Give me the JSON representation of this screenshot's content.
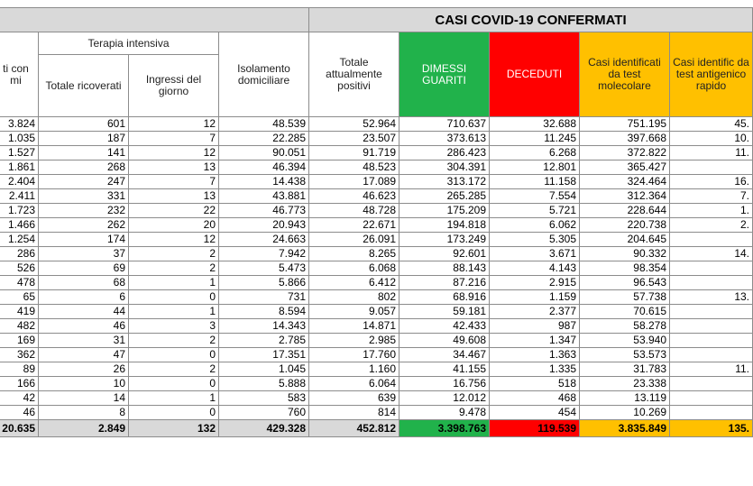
{
  "header": {
    "title": "CASI COVID-19 CONFERMATI",
    "ricoverati_sintomi": "ti con mi",
    "terapia_intensiva": "Terapia intensiva",
    "totale_ricoverati": "Totale ricoverati",
    "ingressi_del_giorno": "Ingressi del giorno",
    "isolamento_domiciliare": "Isolamento domiciliare",
    "totale_attualmente_positivi": "Totale attualmente positivi",
    "dimessi_guariti": "DIMESSI GUARITI",
    "deceduti": "DECEDUTI",
    "test_molecolare": "Casi identificati da test molecolare",
    "test_antigenico": "Casi identific da test antigenico rapido"
  },
  "columns": [
    "ricoverati_sintomi",
    "totale_ricoverati",
    "ingressi",
    "isolamento",
    "attualmente_positivi",
    "dimessi_guariti",
    "deceduti",
    "test_molecolare",
    "test_antigenico"
  ],
  "rows": [
    [
      "3.824",
      "601",
      "12",
      "48.539",
      "52.964",
      "710.637",
      "32.688",
      "751.195",
      "45."
    ],
    [
      "1.035",
      "187",
      "7",
      "22.285",
      "23.507",
      "373.613",
      "11.245",
      "397.668",
      "10."
    ],
    [
      "1.527",
      "141",
      "12",
      "90.051",
      "91.719",
      "286.423",
      "6.268",
      "372.822",
      "11."
    ],
    [
      "1.861",
      "268",
      "13",
      "46.394",
      "48.523",
      "304.391",
      "12.801",
      "365.427",
      ""
    ],
    [
      "2.404",
      "247",
      "7",
      "14.438",
      "17.089",
      "313.172",
      "11.158",
      "324.464",
      "16."
    ],
    [
      "2.411",
      "331",
      "13",
      "43.881",
      "46.623",
      "265.285",
      "7.554",
      "312.364",
      "7."
    ],
    [
      "1.723",
      "232",
      "22",
      "46.773",
      "48.728",
      "175.209",
      "5.721",
      "228.644",
      "1."
    ],
    [
      "1.466",
      "262",
      "20",
      "20.943",
      "22.671",
      "194.818",
      "6.062",
      "220.738",
      "2."
    ],
    [
      "1.254",
      "174",
      "12",
      "24.663",
      "26.091",
      "173.249",
      "5.305",
      "204.645",
      ""
    ],
    [
      "286",
      "37",
      "2",
      "7.942",
      "8.265",
      "92.601",
      "3.671",
      "90.332",
      "14."
    ],
    [
      "526",
      "69",
      "2",
      "5.473",
      "6.068",
      "88.143",
      "4.143",
      "98.354",
      ""
    ],
    [
      "478",
      "68",
      "1",
      "5.866",
      "6.412",
      "87.216",
      "2.915",
      "96.543",
      ""
    ],
    [
      "65",
      "6",
      "0",
      "731",
      "802",
      "68.916",
      "1.159",
      "57.738",
      "13."
    ],
    [
      "419",
      "44",
      "1",
      "8.594",
      "9.057",
      "59.181",
      "2.377",
      "70.615",
      ""
    ],
    [
      "482",
      "46",
      "3",
      "14.343",
      "14.871",
      "42.433",
      "987",
      "58.278",
      ""
    ],
    [
      "169",
      "31",
      "2",
      "2.785",
      "2.985",
      "49.608",
      "1.347",
      "53.940",
      ""
    ],
    [
      "362",
      "47",
      "0",
      "17.351",
      "17.760",
      "34.467",
      "1.363",
      "53.573",
      ""
    ],
    [
      "89",
      "26",
      "2",
      "1.045",
      "1.160",
      "41.155",
      "1.335",
      "31.783",
      "11."
    ],
    [
      "166",
      "10",
      "0",
      "5.888",
      "6.064",
      "16.756",
      "518",
      "23.338",
      ""
    ],
    [
      "42",
      "14",
      "1",
      "583",
      "639",
      "12.012",
      "468",
      "13.119",
      ""
    ],
    [
      "46",
      "8",
      "0",
      "760",
      "814",
      "9.478",
      "454",
      "10.269",
      ""
    ]
  ],
  "totals": [
    "20.635",
    "2.849",
    "132",
    "429.328",
    "452.812",
    "3.398.763",
    "119.539",
    "3.835.849",
    "135."
  ],
  "colors": {
    "header_grey": "#d9d9d9",
    "dimessi_green": "#21b24b",
    "deceduti_red": "#ff0000",
    "test_amber": "#ffc000",
    "grid": "#8c8c8c"
  }
}
